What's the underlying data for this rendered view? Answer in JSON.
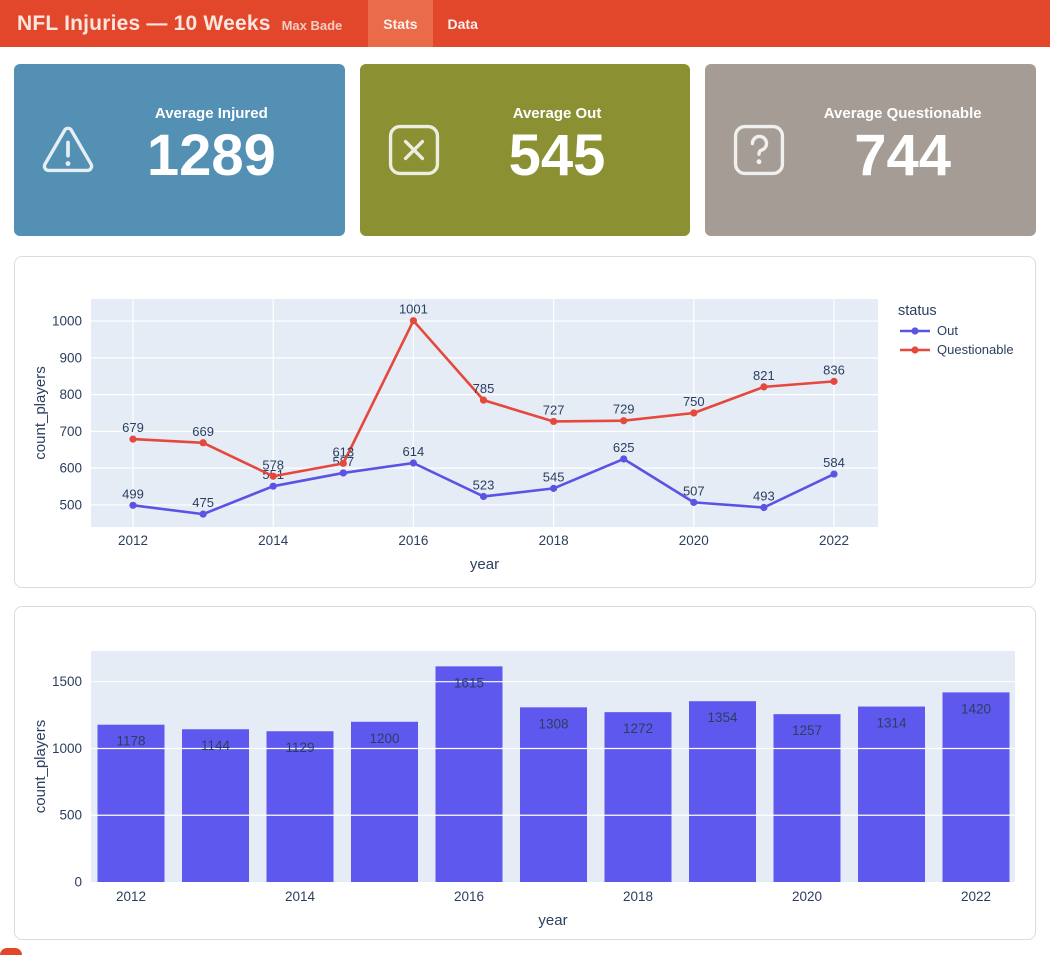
{
  "header": {
    "title": "NFL Injuries — 10 Weeks",
    "subtitle": "Max Bade",
    "tabs": [
      {
        "label": "Stats",
        "active": true
      },
      {
        "label": "Data",
        "active": false
      }
    ],
    "bg_color": "#e2472c",
    "active_tab_color": "#e96b49"
  },
  "cards": [
    {
      "title": "Average Injured",
      "value": "1289",
      "color": "#5390b4",
      "icon": "warning-triangle-icon"
    },
    {
      "title": "Average Out",
      "value": "545",
      "color": "#8b9033",
      "icon": "x-square-icon"
    },
    {
      "title": "Average Questionable",
      "value": "744",
      "color": "#a49c95",
      "icon": "question-square-icon"
    }
  ],
  "chart_data": [
    {
      "type": "line",
      "x": [
        2012,
        2013,
        2014,
        2015,
        2016,
        2017,
        2018,
        2019,
        2020,
        2021,
        2022
      ],
      "series": [
        {
          "name": "Out",
          "color": "#5a53e3",
          "values": [
            499,
            475,
            551,
            587,
            614,
            523,
            545,
            625,
            507,
            493,
            584
          ]
        },
        {
          "name": "Questionable",
          "color": "#e5483d",
          "values": [
            679,
            669,
            578,
            613,
            1001,
            785,
            727,
            729,
            750,
            821,
            836
          ]
        }
      ],
      "xlabel": "year",
      "ylabel": "count_players",
      "legend_title": "status",
      "legend_position": "right",
      "xticks": [
        2012,
        2014,
        2016,
        2018,
        2020,
        2022
      ],
      "yticks": [
        500,
        600,
        700,
        800,
        900,
        1000
      ],
      "ylim": [
        440,
        1060
      ],
      "grid": true,
      "plot_bg": "#e5ecf6",
      "grid_color": "#ffffff",
      "label_color": "#2a3f5f"
    },
    {
      "type": "bar",
      "x": [
        2012,
        2013,
        2014,
        2015,
        2016,
        2017,
        2018,
        2019,
        2020,
        2021,
        2022
      ],
      "values": [
        1178,
        1144,
        1129,
        1200,
        1615,
        1308,
        1272,
        1354,
        1257,
        1314,
        1420
      ],
      "bar_color": "#5e58ee",
      "bar_label_color": "#ffffff",
      "xlabel": "year",
      "ylabel": "count_players",
      "xticks": [
        2012,
        2014,
        2016,
        2018,
        2020,
        2022
      ],
      "yticks": [
        0,
        500,
        1000,
        1500
      ],
      "ylim": [
        0,
        1730
      ],
      "grid": true,
      "plot_bg": "#e5ecf6",
      "grid_color": "#ffffff",
      "label_color": "#2a3f5f"
    }
  ]
}
